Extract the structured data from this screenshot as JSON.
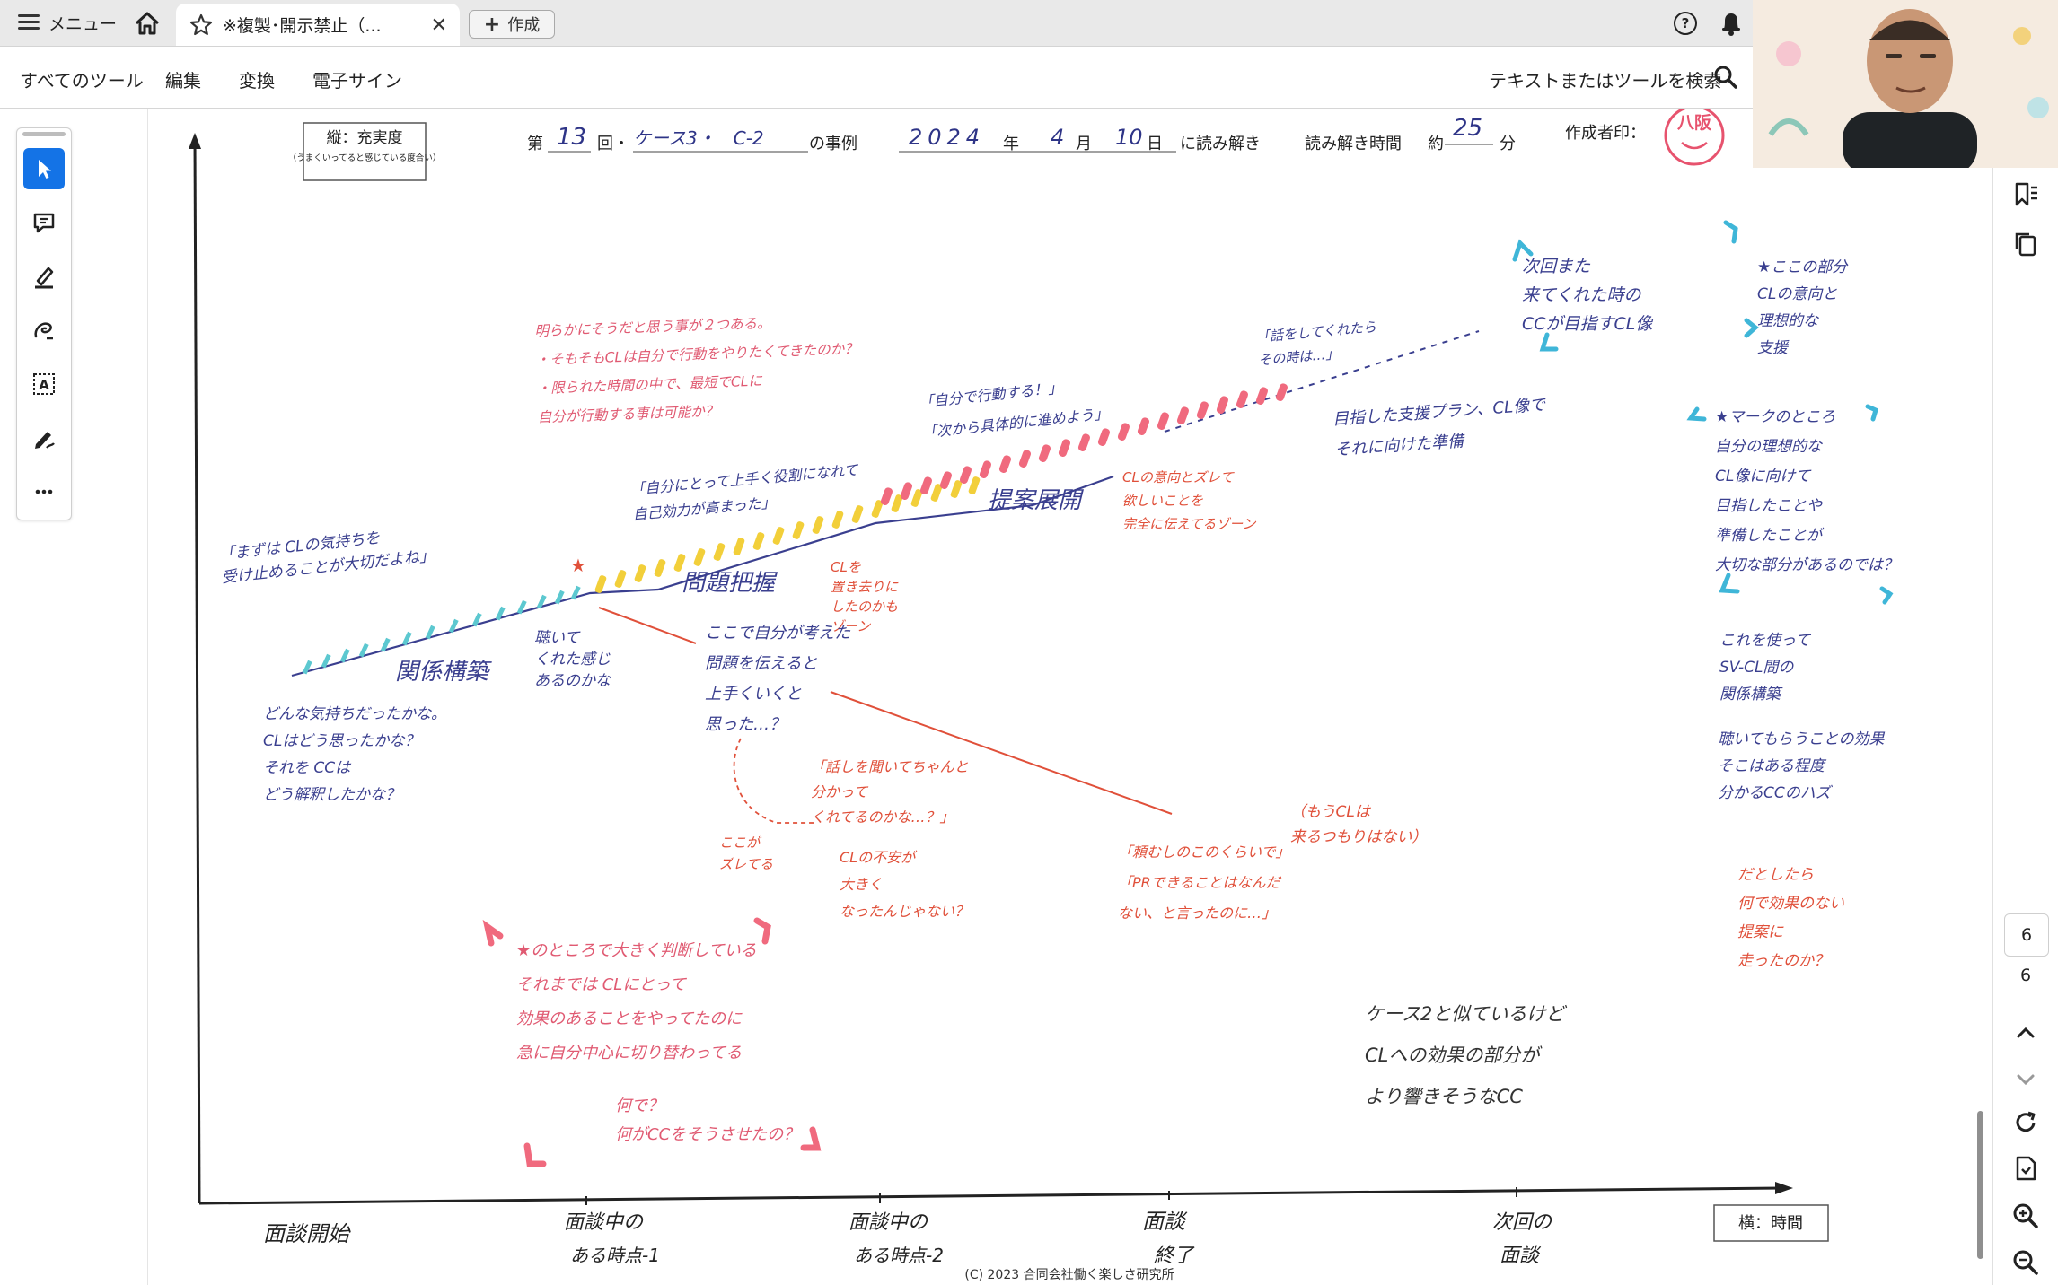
{
  "app": {
    "menu_label": "メニュー",
    "tab_title": "※複製･開示禁止（...",
    "create_label": "作成"
  },
  "toolbar": {
    "items": [
      "すべてのツール",
      "編集",
      "変換",
      "電子サイン"
    ],
    "search_placeholder": "テキストまたはツールを検索"
  },
  "nav": {
    "current_page": "6",
    "total_pages": "6"
  },
  "document": {
    "header": {
      "vertical_axis_label": "縦：充実度",
      "vertical_axis_note": "（うまくいってると感じている度合い）",
      "prefix": "第",
      "session_no": "13",
      "kai": "回・",
      "case_name": "ケース3・　C-2",
      "case_suffix": "の事例",
      "year": "2024",
      "nen": "年",
      "month": "4",
      "tsuki": "月",
      "day": "10",
      "hi": "日",
      "read_suffix": "に読み解き",
      "read_time_label": "読み解き時間",
      "approx": "約",
      "minutes": "25",
      "fun": "分",
      "author_label": "作成者印：",
      "stamp_text": "八阪"
    },
    "horizontal_axis_label": "横：時間",
    "x_ticks": [
      "面談開始",
      "面談中の\nある時点-1",
      "面談中の\nある時点-2",
      "面談\n終了",
      "次回の\n面談"
    ],
    "copyright": "(C) 2023 合同会社働く楽しさ研究所",
    "phases": [
      "関係構築",
      "問題把握",
      "提案展開"
    ],
    "notes": {
      "n1": "「まずは CLの気持ちを\n受け止めることが大切だよね」",
      "n2": "聴いて\nくれた感じ\nあるのかな",
      "n3": "どんな気持ちだったかな。\nCLはどう思ったかな？\nそれを CCは\nどう解釈したかな？",
      "n4": "明らかにそうだと思う事が２つある。\n・そもそもCLは自分で行動をやりたくてきたのか？\n・限られた時間の中で、最短でCLに\n自分が行動する事は可能か？",
      "n5": "「自分にとって上手く役割になれて\n自己効力が高まった」",
      "n6": "CLを\n置き去りに\nしたのかも\nゾーン",
      "n7": "ここで自分が考えた\n問題を伝えると\n上手くいくと\n思った…？",
      "n8": "ここが\nズレてる",
      "n9": "「話しを聞いてちゃんと\n分かって\nくれてるのかな…？」",
      "n10": "CLの不安が\n大きく\nなったんじゃない？",
      "n11": "「自分で行動する！」\n「次から具体的に進めよう」",
      "n12": "CLの意向とズレて\n欲しいことを\n完全に伝えてるゾーン",
      "n13": "「話をしてくれたら\nその時は…」",
      "n14": "「頼むしのこのくらいで」\n「PRできることはなんだ\nない、と言ったのに…」",
      "n15": "（もうCLは\n来るつもりはない）",
      "n16": "目指した支援プラン、CL像で\nそれに向けた準備",
      "n17": "次回また\n来てくれた時の\nCCが目指すCL像",
      "n18": "★ここの部分\nCLの意向と\n理想的な\n支援",
      "n19": "★マークのところ\n自分の理想的な\nCL像に向けて\n目指したことや\n準備したことが\n大切な部分があるのでは？",
      "n20": "これを使って\nSV-CL間の\n関係構築",
      "n21": "聴いてもらうことの効果\nそこはある程度\n分かるCCのハズ",
      "n22": "だとしたら\n何で効果のない\n提案に\n走ったのか？",
      "n23": "★のところで大きく判断している\nそれまでは CLにとって\n効果のあることをやってたのに\n急に自分中心に切り替わってる",
      "n24": "何で？\n何がCCをそうさせたの？",
      "n25": "ケース2と似ているけど\nCLへの効果の部分が\nより響きそうなCC"
    }
  },
  "colors": {
    "accent": "#1473e6",
    "handwriting_blue": "#3a3f8f",
    "handwriting_red": "#e0503a",
    "handwriting_pink": "#e05a72",
    "marker_teal": "#5cc8d0",
    "marker_yellow": "#f2cf3a",
    "marker_pink": "#f06a7e",
    "bracket_cyan": "#3fb6d8"
  },
  "icons": {
    "left_tools": [
      "select-cursor-icon",
      "comment-icon",
      "highlight-pen-icon",
      "draw-freehand-icon",
      "text-box-icon",
      "sign-icon",
      "more-icon"
    ],
    "right_tools": [
      "bookmark-icon",
      "copy-pages-icon",
      "chevron-up-icon",
      "chevron-down-icon",
      "rotate-icon",
      "save-icon",
      "zoom-in-icon",
      "zoom-out-icon"
    ]
  }
}
